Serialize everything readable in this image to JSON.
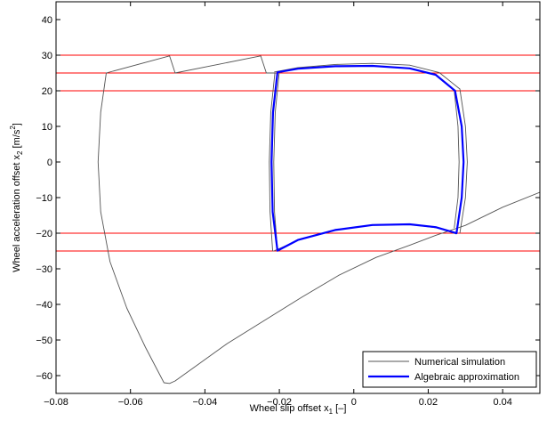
{
  "chart_data": {
    "type": "line",
    "title": "",
    "xlabel": "Wheel slip offset x",
    "xlabel_sub": "1",
    "xlabel_unit": " [–]",
    "ylabel": "Wheel acceleration offset x",
    "ylabel_sub": "2",
    "ylabel_unit": " [m/s",
    "ylabel_sup": "2",
    "ylabel_close": "]",
    "xlim": [
      -0.08,
      0.05
    ],
    "ylim": [
      -65,
      45
    ],
    "xticks": [
      -0.08,
      -0.06,
      -0.04,
      -0.02,
      0,
      0.02,
      0.04
    ],
    "xtick_labels": [
      "−0.08",
      "−0.06",
      "−0.04",
      "−0.02",
      "0",
      "0.02",
      "0.04"
    ],
    "yticks": [
      -60,
      -50,
      -40,
      -30,
      -20,
      -10,
      0,
      10,
      20,
      30,
      40
    ],
    "ytick_labels": [
      "−60",
      "−50",
      "−40",
      "−30",
      "−20",
      "−10",
      "0",
      "10",
      "20",
      "30",
      "40"
    ],
    "grid": false,
    "legend_position": "bottom-right",
    "reference_lines": {
      "color": "#ff0000",
      "y": [
        30,
        25,
        20,
        -20,
        -25
      ]
    },
    "series": [
      {
        "name": "Numerical simulation",
        "color": "#555555",
        "width": 0.9,
        "paths": [
          [
            [
              -0.0665,
              25
            ],
            [
              -0.0495,
              29.8
            ],
            [
              -0.048,
              25
            ],
            [
              -0.025,
              29.8
            ],
            [
              -0.0235,
              25
            ],
            [
              -0.021,
              25
            ]
          ],
          [
            [
              -0.0665,
              25
            ],
            [
              -0.068,
              14
            ],
            [
              -0.0687,
              0
            ],
            [
              -0.068,
              -14
            ],
            [
              -0.0655,
              -28
            ],
            [
              -0.061,
              -41
            ],
            [
              -0.056,
              -52
            ],
            [
              -0.051,
              -62
            ],
            [
              -0.0495,
              -62.2
            ],
            [
              -0.048,
              -61.5
            ],
            [
              -0.042,
              -57
            ],
            [
              -0.034,
              -51
            ],
            [
              -0.024,
              -44.5
            ],
            [
              -0.014,
              -38
            ],
            [
              -0.004,
              -31.8
            ],
            [
              0.006,
              -26.8
            ],
            [
              0.015,
              -23.4
            ],
            [
              0.022,
              -20.6
            ],
            [
              0.03,
              -17.8
            ],
            [
              0.04,
              -12.7
            ],
            [
              0.05,
              -8.5
            ]
          ],
          [
            [
              -0.0212,
              25
            ],
            [
              -0.0223,
              14
            ],
            [
              -0.0227,
              0
            ],
            [
              -0.0225,
              -14
            ],
            [
              -0.0218,
              -25
            ]
          ],
          [
            [
              -0.02,
              25.5
            ],
            [
              -0.0211,
              14
            ],
            [
              -0.0215,
              0
            ],
            [
              -0.0213,
              -14
            ],
            [
              -0.0205,
              -24.7
            ]
          ],
          [
            [
              -0.0213,
              25.3
            ],
            [
              -0.015,
              26.5
            ],
            [
              -0.005,
              27.4
            ],
            [
              0.005,
              27.7
            ],
            [
              0.015,
              27.2
            ],
            [
              0.023,
              25.1
            ],
            [
              0.0285,
              20.5
            ]
          ],
          [
            [
              0.0285,
              20.5
            ],
            [
              0.03,
              10
            ],
            [
              0.0305,
              0
            ],
            [
              0.03,
              -10
            ],
            [
              0.0285,
              -20
            ]
          ],
          [
            [
              0.027,
              -18.5
            ],
            [
              0.028,
              -10
            ],
            [
              0.0283,
              0
            ],
            [
              0.028,
              10
            ],
            [
              0.027,
              20
            ]
          ],
          [
            [
              -0.0215,
              -25
            ],
            [
              -0.015,
              -22
            ],
            [
              -0.005,
              -19.2
            ],
            [
              0.005,
              -17.6
            ],
            [
              0.015,
              -17.5
            ],
            [
              0.023,
              -18.6
            ],
            [
              0.0275,
              -20.2
            ]
          ]
        ]
      },
      {
        "name": "Algebraic approximation",
        "color": "#0000ff",
        "width": 2.2,
        "paths": [
          [
            [
              -0.0205,
              25.2
            ],
            [
              -0.015,
              26.2
            ],
            [
              -0.005,
              26.9
            ],
            [
              0.005,
              27.0
            ],
            [
              0.015,
              26.3
            ],
            [
              0.022,
              24.5
            ],
            [
              0.0272,
              20
            ],
            [
              0.029,
              10
            ],
            [
              0.0295,
              0
            ],
            [
              0.029,
              -10
            ],
            [
              0.0276,
              -20
            ],
            [
              0.022,
              -18.3
            ],
            [
              0.015,
              -17.5
            ],
            [
              0.005,
              -17.7
            ],
            [
              -0.005,
              -19.1
            ],
            [
              -0.015,
              -21.9
            ],
            [
              -0.0205,
              -24.9
            ],
            [
              -0.0218,
              -14
            ],
            [
              -0.0221,
              0
            ],
            [
              -0.0217,
              14
            ],
            [
              -0.0205,
              25.2
            ]
          ]
        ]
      }
    ]
  }
}
